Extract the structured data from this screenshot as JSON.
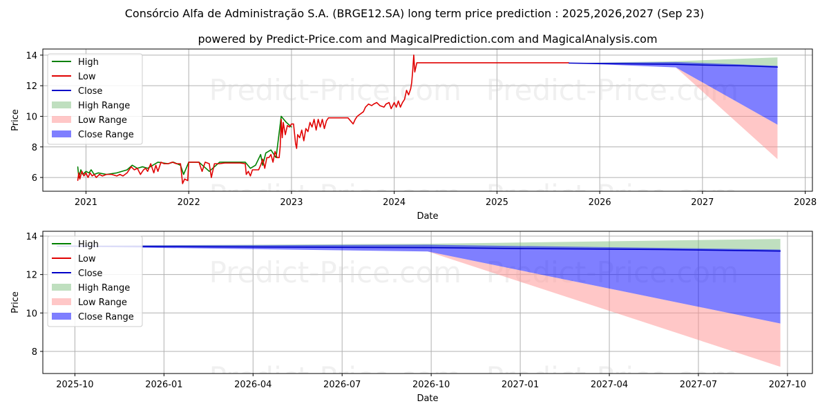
{
  "title": "Consórcio Alfa de Administração S.A. (BRGE12.SA) long term price prediction : 2025,2026,2027 (Sep 23)",
  "subtitle": "powered by Predict-Price.com and MagicalPrediction.com and MagicalAnalysis.com",
  "watermark": "Predict-Price.com",
  "colors": {
    "high": "#008000",
    "low": "#e00000",
    "close": "#0000c8",
    "high_range": "#80c080",
    "low_range": "#ff9090",
    "close_range": "#0000ff"
  },
  "chart_data": [
    {
      "type": "line",
      "title": "",
      "xlabel": "Date",
      "ylabel": "Price",
      "xlim": [
        2020.58,
        2028.07
      ],
      "ylim": [
        5.1,
        14.4
      ],
      "grid": true,
      "legend": "top-left",
      "x_ticks": [
        {
          "v": 2021,
          "label": "2021"
        },
        {
          "v": 2022,
          "label": "2022"
        },
        {
          "v": 2023,
          "label": "2023"
        },
        {
          "v": 2024,
          "label": "2024"
        },
        {
          "v": 2025,
          "label": "2025"
        },
        {
          "v": 2026,
          "label": "2026"
        },
        {
          "v": 2027,
          "label": "2027"
        },
        {
          "v": 2028,
          "label": "2028"
        }
      ],
      "y_ticks": [
        {
          "v": 6,
          "label": "6"
        },
        {
          "v": 8,
          "label": "8"
        },
        {
          "v": 10,
          "label": "10"
        },
        {
          "v": 12,
          "label": "12"
        },
        {
          "v": 14,
          "label": "14"
        }
      ],
      "legend_entries": [
        {
          "label": "High",
          "kind": "line",
          "color_key": "high"
        },
        {
          "label": "Low",
          "kind": "line",
          "color_key": "low"
        },
        {
          "label": "Close",
          "kind": "line",
          "color_key": "close"
        },
        {
          "label": "High Range",
          "kind": "patch",
          "color_key": "high_range"
        },
        {
          "label": "Low Range",
          "kind": "patch",
          "color_key": "low_range"
        },
        {
          "label": "Close Range",
          "kind": "patch",
          "color_key": "close_range"
        }
      ],
      "series": [
        {
          "name": "High",
          "color_key": "high",
          "x": [
            2020.92,
            2020.93,
            2020.95,
            2020.97,
            2021.0,
            2021.03,
            2021.05,
            2021.08,
            2021.12,
            2021.2,
            2021.3,
            2021.4,
            2021.45,
            2021.5,
            2021.55,
            2021.6,
            2021.7,
            2021.8,
            2021.85,
            2021.92,
            2021.95,
            2022.0,
            2022.1,
            2022.2,
            2022.3,
            2022.4,
            2022.5,
            2022.55,
            2022.6,
            2022.65,
            2022.7,
            2022.72,
            2022.75,
            2022.8,
            2022.85,
            2022.9,
            2022.95,
            2023.0
          ],
          "y": [
            6.7,
            6.0,
            6.5,
            6.2,
            6.4,
            6.3,
            6.5,
            6.2,
            6.3,
            6.2,
            6.3,
            6.5,
            6.8,
            6.6,
            6.7,
            6.6,
            7.0,
            6.9,
            7.0,
            6.8,
            6.2,
            7.0,
            7.0,
            6.4,
            7.0,
            7.0,
            7.0,
            7.0,
            6.6,
            6.8,
            7.5,
            6.8,
            7.6,
            7.8,
            7.3,
            10.0,
            9.6,
            9.3
          ]
        },
        {
          "name": "Low",
          "color_key": "low",
          "x": [
            2020.92,
            2020.93,
            2020.94,
            2020.96,
            2020.98,
            2021.0,
            2021.02,
            2021.04,
            2021.06,
            2021.08,
            2021.1,
            2021.13,
            2021.16,
            2021.2,
            2021.25,
            2021.3,
            2021.33,
            2021.36,
            2021.4,
            2021.44,
            2021.47,
            2021.5,
            2021.53,
            2021.56,
            2021.58,
            2021.6,
            2021.63,
            2021.66,
            2021.68,
            2021.7,
            2021.73,
            2021.76,
            2021.8,
            2021.84,
            2021.88,
            2021.92,
            2021.94,
            2021.96,
            2021.99,
            2022.0,
            2022.05,
            2022.1,
            2022.13,
            2022.16,
            2022.2,
            2022.22,
            2022.25,
            2022.3,
            2022.35,
            2022.4,
            2022.45,
            2022.5,
            2022.55,
            2022.56,
            2022.58,
            2022.6,
            2022.62,
            2022.65,
            2022.68,
            2022.7,
            2022.72,
            2022.74,
            2022.76,
            2022.78,
            2022.8,
            2022.82,
            2022.84,
            2022.86,
            2022.88,
            2022.89,
            2022.9,
            2022.91,
            2022.92,
            2022.94,
            2022.96,
            2022.98,
            2023.0,
            2023.02,
            2023.04,
            2023.05,
            2023.06,
            2023.08,
            2023.1,
            2023.12,
            2023.14,
            2023.16,
            2023.18,
            2023.2,
            2023.22,
            2023.24,
            2023.26,
            2023.28,
            2023.3,
            2023.32,
            2023.34,
            2023.36,
            2023.4,
            2023.45,
            2023.5,
            2023.55,
            2023.6,
            2023.62,
            2023.64,
            2023.66,
            2023.7,
            2023.72,
            2023.75,
            2023.78,
            2023.8,
            2023.83,
            2023.86,
            2023.9,
            2023.92,
            2023.95,
            2023.97,
            2024.0,
            2024.02,
            2024.04,
            2024.06,
            2024.08,
            2024.1,
            2024.12,
            2024.14,
            2024.16,
            2024.17,
            2024.18,
            2024.19,
            2024.2,
            2024.22,
            2024.3,
            2024.5,
            2024.8,
            2025.0,
            2025.3,
            2025.5,
            2025.7
          ],
          "y": [
            5.8,
            6.3,
            5.9,
            6.4,
            6.1,
            6.3,
            6.0,
            6.3,
            6.1,
            6.2,
            6.0,
            6.2,
            6.1,
            6.2,
            6.2,
            6.1,
            6.2,
            6.1,
            6.3,
            6.7,
            6.5,
            6.6,
            6.2,
            6.5,
            6.6,
            6.4,
            6.9,
            6.3,
            6.8,
            6.4,
            7.0,
            6.9,
            6.9,
            7.0,
            6.9,
            6.9,
            5.6,
            5.9,
            5.8,
            7.0,
            7.0,
            7.0,
            6.4,
            7.0,
            6.9,
            6.0,
            6.9,
            6.9,
            6.95,
            6.95,
            6.95,
            6.95,
            6.9,
            6.2,
            6.4,
            6.1,
            6.5,
            6.5,
            6.5,
            6.8,
            7.2,
            6.6,
            7.3,
            7.3,
            7.5,
            7.0,
            7.7,
            7.3,
            7.3,
            8.0,
            9.8,
            8.6,
            9.6,
            8.8,
            9.4,
            9.3,
            9.5,
            9.5,
            8.2,
            7.9,
            8.8,
            8.6,
            9.1,
            8.4,
            9.2,
            9.0,
            9.6,
            9.3,
            9.8,
            9.1,
            9.8,
            9.3,
            9.8,
            9.2,
            9.7,
            9.9,
            9.9,
            9.9,
            9.9,
            9.9,
            9.5,
            9.8,
            10.0,
            10.1,
            10.3,
            10.6,
            10.8,
            10.7,
            10.8,
            10.9,
            10.7,
            10.6,
            10.8,
            10.9,
            10.5,
            10.9,
            10.6,
            11.0,
            10.6,
            10.9,
            11.1,
            11.7,
            11.4,
            11.8,
            12.2,
            13.0,
            14.0,
            12.9,
            13.5,
            13.5,
            13.5,
            13.5,
            13.5,
            13.5,
            13.5,
            13.5
          ]
        },
        {
          "name": "Close",
          "color_key": "close",
          "x": [
            2025.7,
            2026.0,
            2026.4,
            2026.74,
            2027.0,
            2027.4,
            2027.73
          ],
          "y": [
            13.48,
            13.45,
            13.42,
            13.4,
            13.35,
            13.3,
            13.22
          ]
        }
      ],
      "ranges": [
        {
          "name": "High Range",
          "color_key": "high_range",
          "x": [
            2025.7,
            2026.74,
            2027.73
          ],
          "lower": [
            13.48,
            13.4,
            13.22
          ],
          "upper": [
            13.48,
            13.6,
            13.85
          ]
        },
        {
          "name": "Close Range",
          "color_key": "close_range",
          "x": [
            2025.7,
            2026.74,
            2027.73
          ],
          "lower": [
            13.48,
            13.2,
            9.45
          ],
          "upper": [
            13.48,
            13.55,
            13.3
          ]
        },
        {
          "name": "Low Range",
          "color_key": "low_range",
          "x": [
            2026.74,
            2027.73
          ],
          "lower": [
            13.2,
            7.2
          ],
          "upper": [
            13.2,
            9.45
          ]
        }
      ]
    },
    {
      "type": "line",
      "title": "",
      "xlabel": "Date",
      "ylabel": "Price",
      "xlim": [
        2025.66,
        2027.82
      ],
      "ylim": [
        6.85,
        14.25
      ],
      "grid": true,
      "legend": "top-left",
      "x_ticks": [
        {
          "v": 2025.75,
          "label": "2025-10"
        },
        {
          "v": 2026.0,
          "label": "2026-01"
        },
        {
          "v": 2026.25,
          "label": "2026-04"
        },
        {
          "v": 2026.5,
          "label": "2026-07"
        },
        {
          "v": 2026.75,
          "label": "2026-10"
        },
        {
          "v": 2027.0,
          "label": "2027-01"
        },
        {
          "v": 2027.25,
          "label": "2027-04"
        },
        {
          "v": 2027.5,
          "label": "2027-07"
        },
        {
          "v": 2027.75,
          "label": "2027-10"
        }
      ],
      "y_ticks": [
        {
          "v": 8,
          "label": "8"
        },
        {
          "v": 10,
          "label": "10"
        },
        {
          "v": 12,
          "label": "12"
        },
        {
          "v": 14,
          "label": "14"
        }
      ],
      "legend_entries": [
        {
          "label": "High",
          "kind": "line",
          "color_key": "high"
        },
        {
          "label": "Low",
          "kind": "line",
          "color_key": "low"
        },
        {
          "label": "Close",
          "kind": "line",
          "color_key": "close"
        },
        {
          "label": "High Range",
          "kind": "patch",
          "color_key": "high_range"
        },
        {
          "label": "Low Range",
          "kind": "patch",
          "color_key": "low_range"
        },
        {
          "label": "Close Range",
          "kind": "patch",
          "color_key": "close_range"
        }
      ],
      "series": [
        {
          "name": "Close",
          "color_key": "close",
          "x": [
            2025.7,
            2026.0,
            2026.4,
            2026.74,
            2027.0,
            2027.4,
            2027.73
          ],
          "y": [
            13.48,
            13.45,
            13.42,
            13.4,
            13.35,
            13.3,
            13.22
          ]
        }
      ],
      "ranges": [
        {
          "name": "High Range",
          "color_key": "high_range",
          "x": [
            2025.7,
            2026.74,
            2027.73
          ],
          "lower": [
            13.48,
            13.4,
            13.22
          ],
          "upper": [
            13.5,
            13.6,
            13.85
          ]
        },
        {
          "name": "Close Range",
          "color_key": "close_range",
          "x": [
            2025.7,
            2026.74,
            2027.73
          ],
          "lower": [
            13.46,
            13.2,
            9.45
          ],
          "upper": [
            13.5,
            13.55,
            13.3
          ]
        },
        {
          "name": "Low Range",
          "color_key": "low_range",
          "x": [
            2026.74,
            2027.73
          ],
          "lower": [
            13.2,
            7.2
          ],
          "upper": [
            13.2,
            9.45
          ]
        }
      ]
    }
  ]
}
